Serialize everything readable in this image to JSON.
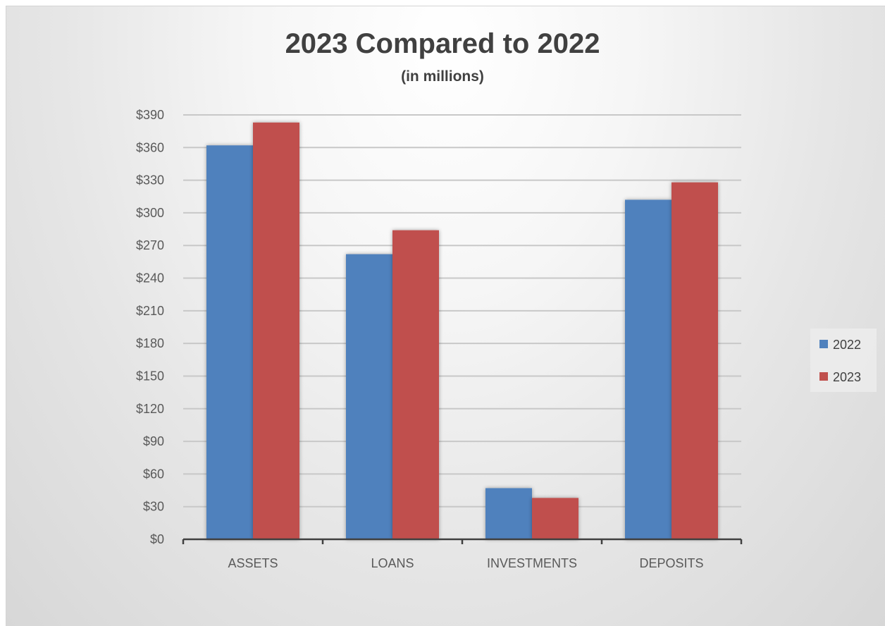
{
  "chart_data": {
    "type": "bar",
    "title": "2023 Compared to 2022",
    "subtitle": "(in millions)",
    "xlabel": "",
    "ylabel": "",
    "categories": [
      "ASSETS",
      "LOANS",
      "INVESTMENTS",
      "DEPOSITS"
    ],
    "series": [
      {
        "name": "2022",
        "color": "#4f81bd",
        "values": [
          362,
          262,
          47,
          312
        ]
      },
      {
        "name": "2023",
        "color": "#c0504d",
        "values": [
          383,
          284,
          38,
          328
        ]
      }
    ],
    "ylim": [
      0,
      390
    ],
    "y_ticks": [
      0,
      30,
      60,
      90,
      120,
      150,
      180,
      210,
      240,
      270,
      300,
      330,
      360,
      390
    ],
    "y_tick_labels": [
      "$0",
      "$30",
      "$60",
      "$90",
      "$120",
      "$150",
      "$180",
      "$210",
      "$240",
      "$270",
      "$300",
      "$330",
      "$360",
      "$390"
    ],
    "grid": true,
    "legend_position": "right"
  }
}
